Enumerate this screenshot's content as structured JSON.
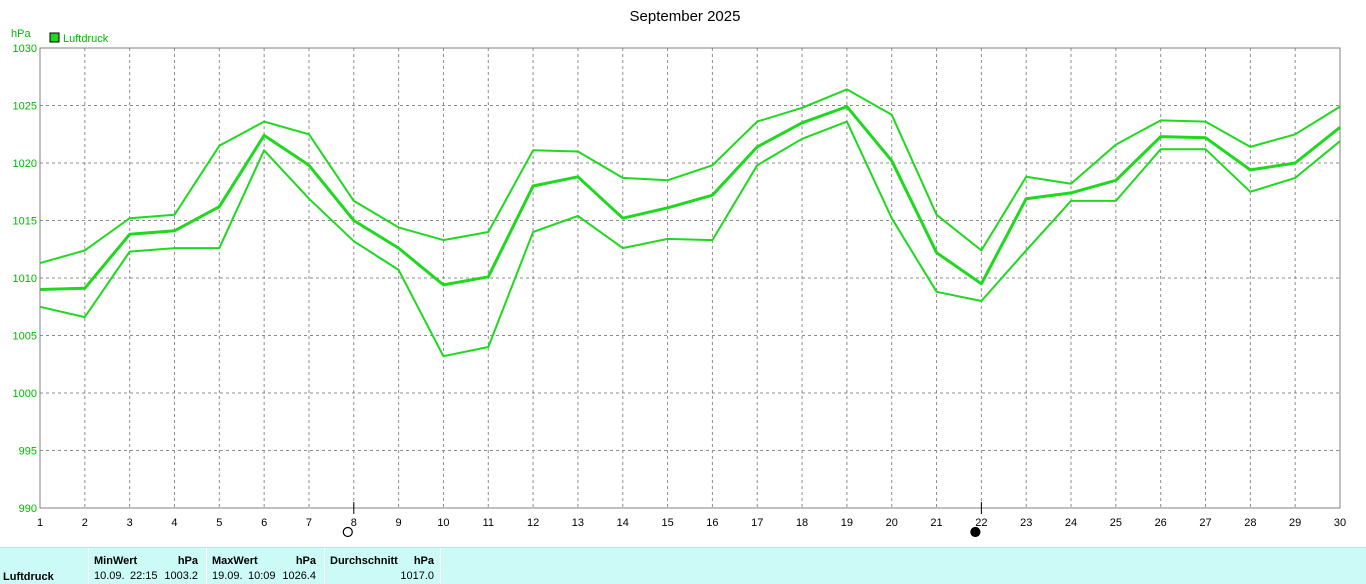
{
  "chart_data": {
    "type": "line",
    "title": "September 2025",
    "ylabel": "hPa",
    "ylim": [
      990,
      1030
    ],
    "yticks": [
      990,
      995,
      1000,
      1005,
      1010,
      1015,
      1020,
      1025,
      1030
    ],
    "xlim": [
      1,
      30
    ],
    "categories": [
      "1",
      "2",
      "3",
      "4",
      "5",
      "6",
      "7",
      "8",
      "9",
      "10",
      "11",
      "12",
      "13",
      "14",
      "15",
      "16",
      "17",
      "18",
      "19",
      "20",
      "21",
      "22",
      "23",
      "24",
      "25",
      "26",
      "27",
      "28",
      "29",
      "30"
    ],
    "grid": true,
    "legend": {
      "position": "top-left",
      "entries": [
        "Luftdruck"
      ]
    },
    "series": [
      {
        "name": "Luftdruck",
        "role": "max",
        "values": [
          1011.3,
          1012.4,
          1015.2,
          1015.5,
          1021.5,
          1023.6,
          1022.5,
          1016.7,
          1014.4,
          1013.3,
          1014.0,
          1021.1,
          1021.0,
          1018.7,
          1018.5,
          1019.8,
          1023.6,
          1024.8,
          1026.4,
          1024.2,
          1015.5,
          1012.4,
          1018.8,
          1018.2,
          1021.6,
          1023.7,
          1023.6,
          1021.4,
          1022.5,
          1024.9
        ]
      },
      {
        "name": "Luftdruck",
        "role": "mean",
        "values": [
          1009.0,
          1009.1,
          1013.8,
          1014.1,
          1016.2,
          1022.4,
          1019.8,
          1015.0,
          1012.6,
          1009.4,
          1010.1,
          1018.0,
          1018.8,
          1015.2,
          1016.1,
          1017.2,
          1021.4,
          1023.5,
          1024.9,
          1020.2,
          1012.2,
          1009.5,
          1016.9,
          1017.4,
          1018.5,
          1022.3,
          1022.2,
          1019.4,
          1020.0,
          1023.1
        ]
      },
      {
        "name": "Luftdruck",
        "role": "min",
        "values": [
          1007.5,
          1006.6,
          1012.3,
          1012.6,
          1012.6,
          1021.1,
          1016.9,
          1013.2,
          1010.7,
          1003.2,
          1004.0,
          1014.0,
          1015.4,
          1012.6,
          1013.4,
          1013.3,
          1019.8,
          1022.1,
          1023.6,
          1015.2,
          1008.8,
          1008.0,
          1012.4,
          1016.7,
          1016.7,
          1021.2,
          1021.2,
          1017.5,
          1018.7,
          1021.9
        ]
      }
    ],
    "moon_phases": [
      {
        "day": 8,
        "phase": "full-moon"
      },
      {
        "day": 22,
        "phase": "new-moon"
      }
    ],
    "colors": {
      "series": "#1ed91e",
      "axis_labels": "#00bb00",
      "grid": "#8c8c8c",
      "legend_swatch": "#1ed91e"
    }
  },
  "stats": {
    "row_label": "Luftdruck",
    "min": {
      "header": "MinWert",
      "unit": "hPa",
      "date": "10.09.",
      "time": "22:15",
      "value": "1003.2"
    },
    "max": {
      "header": "MaxWert",
      "unit": "hPa",
      "date": "19.09.",
      "time": "10:09",
      "value": "1026.4"
    },
    "avg": {
      "header": "Durchschnitt",
      "unit": "hPa",
      "value": "1017.0"
    },
    "background": "#ccfaf6"
  }
}
